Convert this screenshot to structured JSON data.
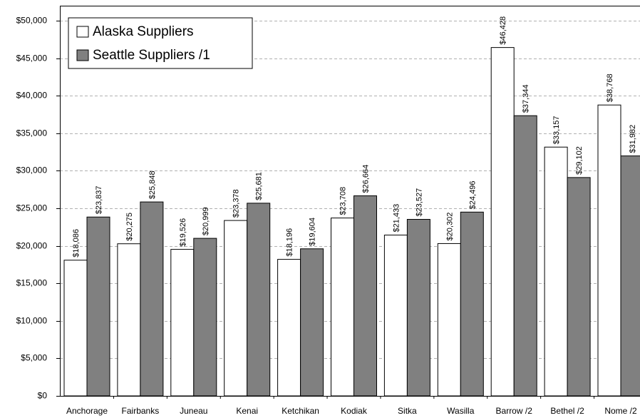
{
  "chart_data": {
    "type": "bar",
    "title": "",
    "xlabel": "",
    "ylabel": "",
    "ylim": [
      0,
      52000
    ],
    "yticks": [
      0,
      5000,
      10000,
      15000,
      20000,
      25000,
      30000,
      35000,
      40000,
      45000,
      50000
    ],
    "ytick_labels": [
      "$0",
      "$5,000",
      "$10,000",
      "$15,000",
      "$20,000",
      "$25,000",
      "$30,000",
      "$35,000",
      "$40,000",
      "$45,000",
      "$50,000"
    ],
    "grid": true,
    "legend_position": "top-left",
    "categories": [
      "Anchorage",
      "Fairbanks",
      "Juneau",
      "Kenai",
      "Ketchikan",
      "Kodiak",
      "Sitka",
      "Wasilla",
      "Barrow /2",
      "Bethel /2",
      "Nome /2"
    ],
    "series": [
      {
        "name": "Alaska Suppliers",
        "color": "#ffffff",
        "values": [
          18086,
          20275,
          19526,
          23378,
          18196,
          23708,
          21433,
          20302,
          46428,
          33157,
          38768
        ],
        "labels": [
          "$18,086",
          "$20,275",
          "$19,526",
          "$23,378",
          "$18,196",
          "$23,708",
          "$21,433",
          "$20,302",
          "$46,428",
          "$33,157",
          "$38,768"
        ]
      },
      {
        "name": "Seattle Suppliers /1",
        "color": "#808080",
        "values": [
          23837,
          25848,
          20999,
          25681,
          19604,
          26664,
          23527,
          24496,
          37344,
          29102,
          31982
        ],
        "labels": [
          "$23,837",
          "$25,848",
          "$20,999",
          "$25,681",
          "$19,604",
          "$26,664",
          "$23,527",
          "$24,496",
          "$37,344",
          "$29,102",
          "$31,982"
        ]
      }
    ]
  }
}
